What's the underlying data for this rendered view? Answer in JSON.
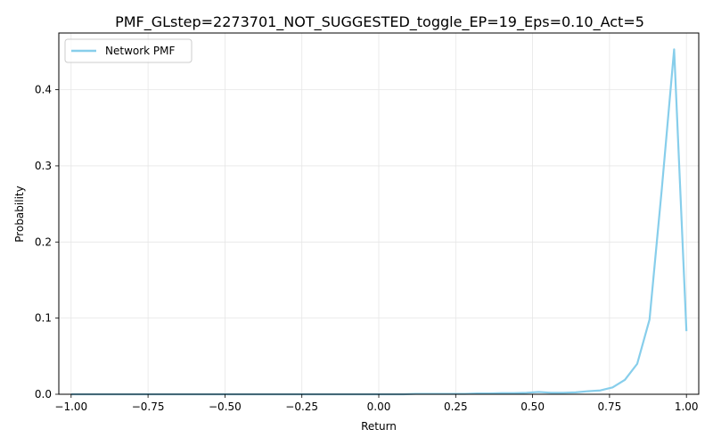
{
  "chart_data": {
    "type": "line",
    "title": "PMF_GLstep=2273701_NOT_SUGGESTED_toggle_EP=19_Eps=0.10_Act=5",
    "xlabel": "Return",
    "ylabel": "Probability",
    "xlim": [
      -1.04,
      1.04
    ],
    "ylim": [
      0,
      0.4745
    ],
    "xticks": [
      -1.0,
      -0.75,
      -0.5,
      -0.25,
      0.0,
      0.25,
      0.5,
      0.75,
      1.0
    ],
    "xtick_labels": [
      "−1.00",
      "−0.75",
      "−0.50",
      "−0.25",
      "0.00",
      "0.25",
      "0.50",
      "0.75",
      "1.00"
    ],
    "yticks": [
      0.0,
      0.1,
      0.2,
      0.3,
      0.4
    ],
    "ytick_labels": [
      "0.0",
      "0.1",
      "0.2",
      "0.3",
      "0.4"
    ],
    "grid": true,
    "legend_position": "top-left",
    "series": [
      {
        "name": "Network PMF",
        "color": "#87ceeb",
        "x": [
          -1.0,
          -0.96,
          -0.92,
          -0.88,
          -0.84,
          -0.8,
          -0.76,
          -0.72,
          -0.68,
          -0.64,
          -0.6,
          -0.56,
          -0.52,
          -0.48,
          -0.44,
          -0.4,
          -0.36,
          -0.32,
          -0.28,
          -0.24,
          -0.2,
          -0.16,
          -0.12,
          -0.08,
          -0.04,
          0.0,
          0.04,
          0.08,
          0.12,
          0.16,
          0.2,
          0.24,
          0.28,
          0.32,
          0.36,
          0.4,
          0.44,
          0.48,
          0.52,
          0.56,
          0.6,
          0.64,
          0.68,
          0.72,
          0.76,
          0.8,
          0.84,
          0.88,
          0.92,
          0.96,
          1.0
        ],
        "y": [
          0.0,
          0.0,
          0.0,
          0.0,
          0.0,
          0.0,
          0.0,
          0.0,
          0.0,
          0.0,
          0.0,
          0.0,
          0.0,
          0.0,
          0.0,
          0.0,
          0.0,
          0.0,
          0.0,
          0.0,
          0.0,
          0.0,
          0.0,
          0.0,
          0.0,
          0.0,
          0.0,
          0.0,
          0.0005,
          0.0005,
          0.0005,
          0.0005,
          0.0005,
          0.001,
          0.001,
          0.0015,
          0.0015,
          0.002,
          0.003,
          0.002,
          0.002,
          0.0025,
          0.004,
          0.005,
          0.009,
          0.019,
          0.04,
          0.098,
          0.27,
          0.453,
          0.083
        ]
      }
    ]
  }
}
